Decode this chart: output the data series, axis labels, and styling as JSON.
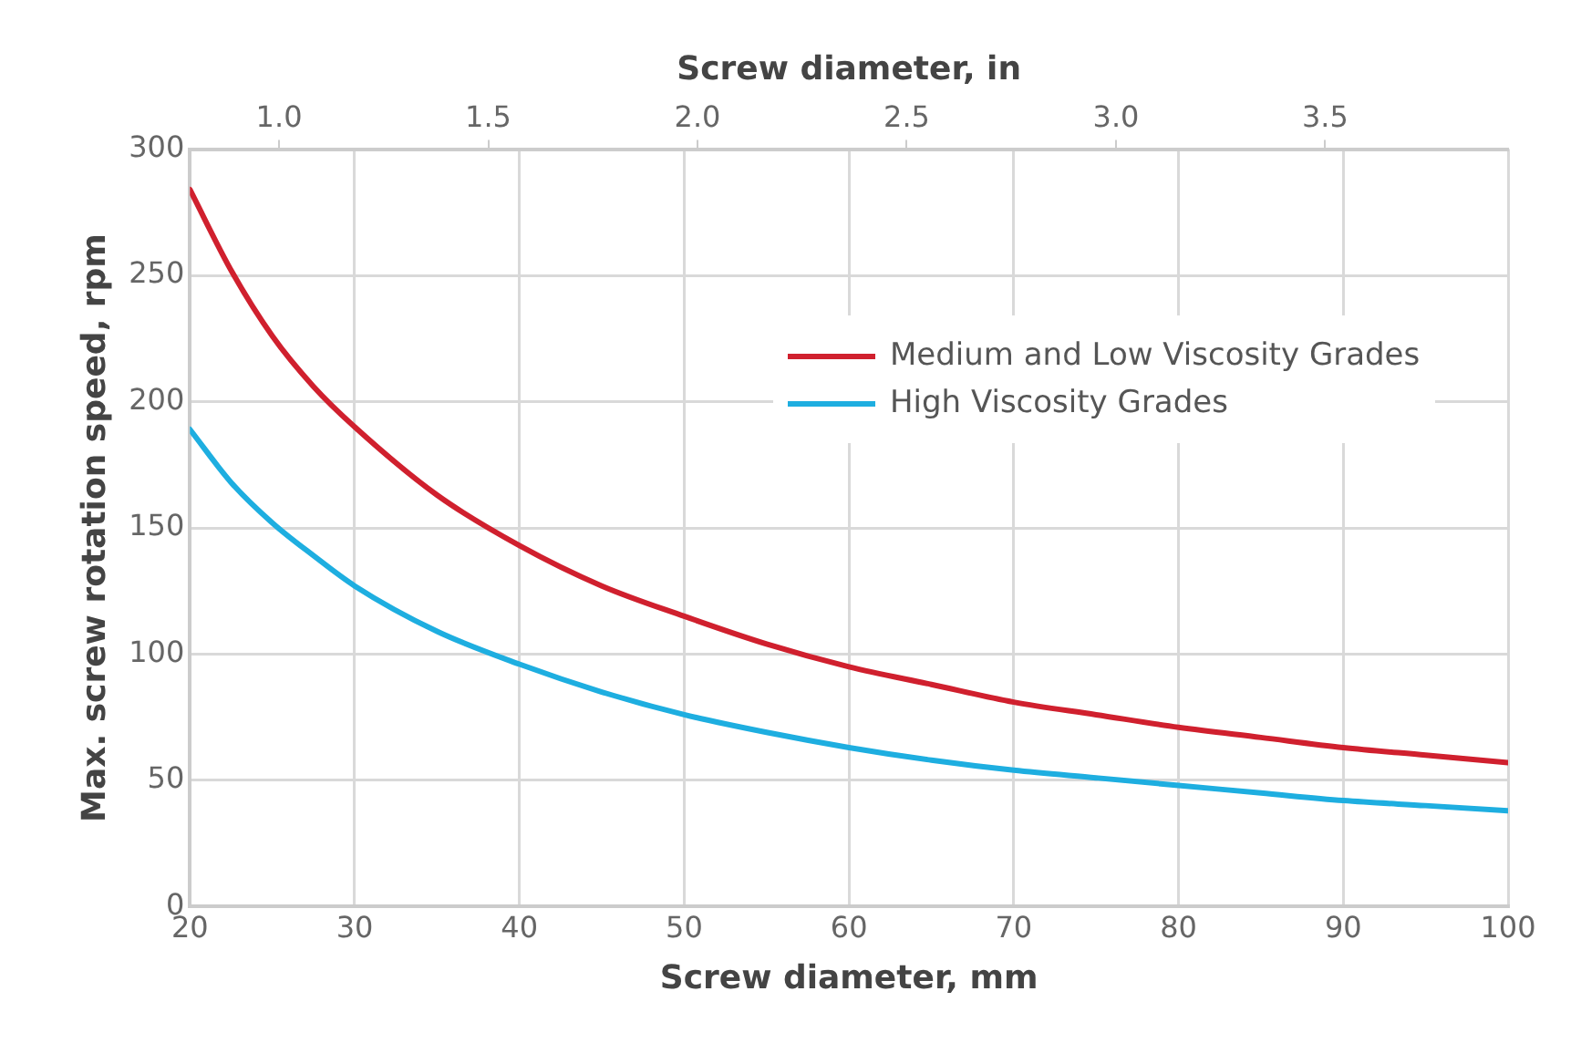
{
  "chart_data": {
    "type": "line",
    "xlabel": "Screw diameter, mm",
    "ylabel": "Max. screw rotation speed, rpm",
    "x2label": "Screw diameter, in",
    "x": [
      20,
      22.5,
      25,
      27.5,
      30,
      35,
      40,
      45,
      50,
      55,
      60,
      65,
      70,
      75,
      80,
      85,
      90,
      95,
      100
    ],
    "series": [
      {
        "name": "Medium and Low Viscosity Grades",
        "color": "#d0202e",
        "values": [
          284,
          252,
          226,
          206,
          190,
          163,
          143,
          127,
          115,
          104,
          95,
          88,
          81,
          76,
          71,
          67,
          63,
          60,
          57
        ]
      },
      {
        "name": "High Viscosity Grades",
        "color": "#1eaee0",
        "values": [
          189,
          168,
          152,
          139,
          127,
          109,
          96,
          85,
          76,
          69,
          63,
          58,
          54,
          51,
          48,
          45,
          42,
          40,
          38
        ]
      }
    ],
    "xlim": [
      20,
      100
    ],
    "xticks": [
      20,
      30,
      40,
      50,
      60,
      70,
      80,
      90,
      100
    ],
    "x2lim": [
      0.787,
      3.937
    ],
    "x2ticks": [
      {
        "value": 1,
        "label": "1.0"
      },
      1.5,
      {
        "value": 2,
        "label": "2.0"
      },
      2.5,
      {
        "value": 3,
        "label": "3.0"
      },
      3.5
    ],
    "ylim": [
      0,
      300
    ],
    "yticks": [
      0,
      50,
      100,
      150,
      200,
      250,
      300
    ],
    "grid": true,
    "legend": "top right",
    "marker": "none",
    "line_style": "solid"
  }
}
